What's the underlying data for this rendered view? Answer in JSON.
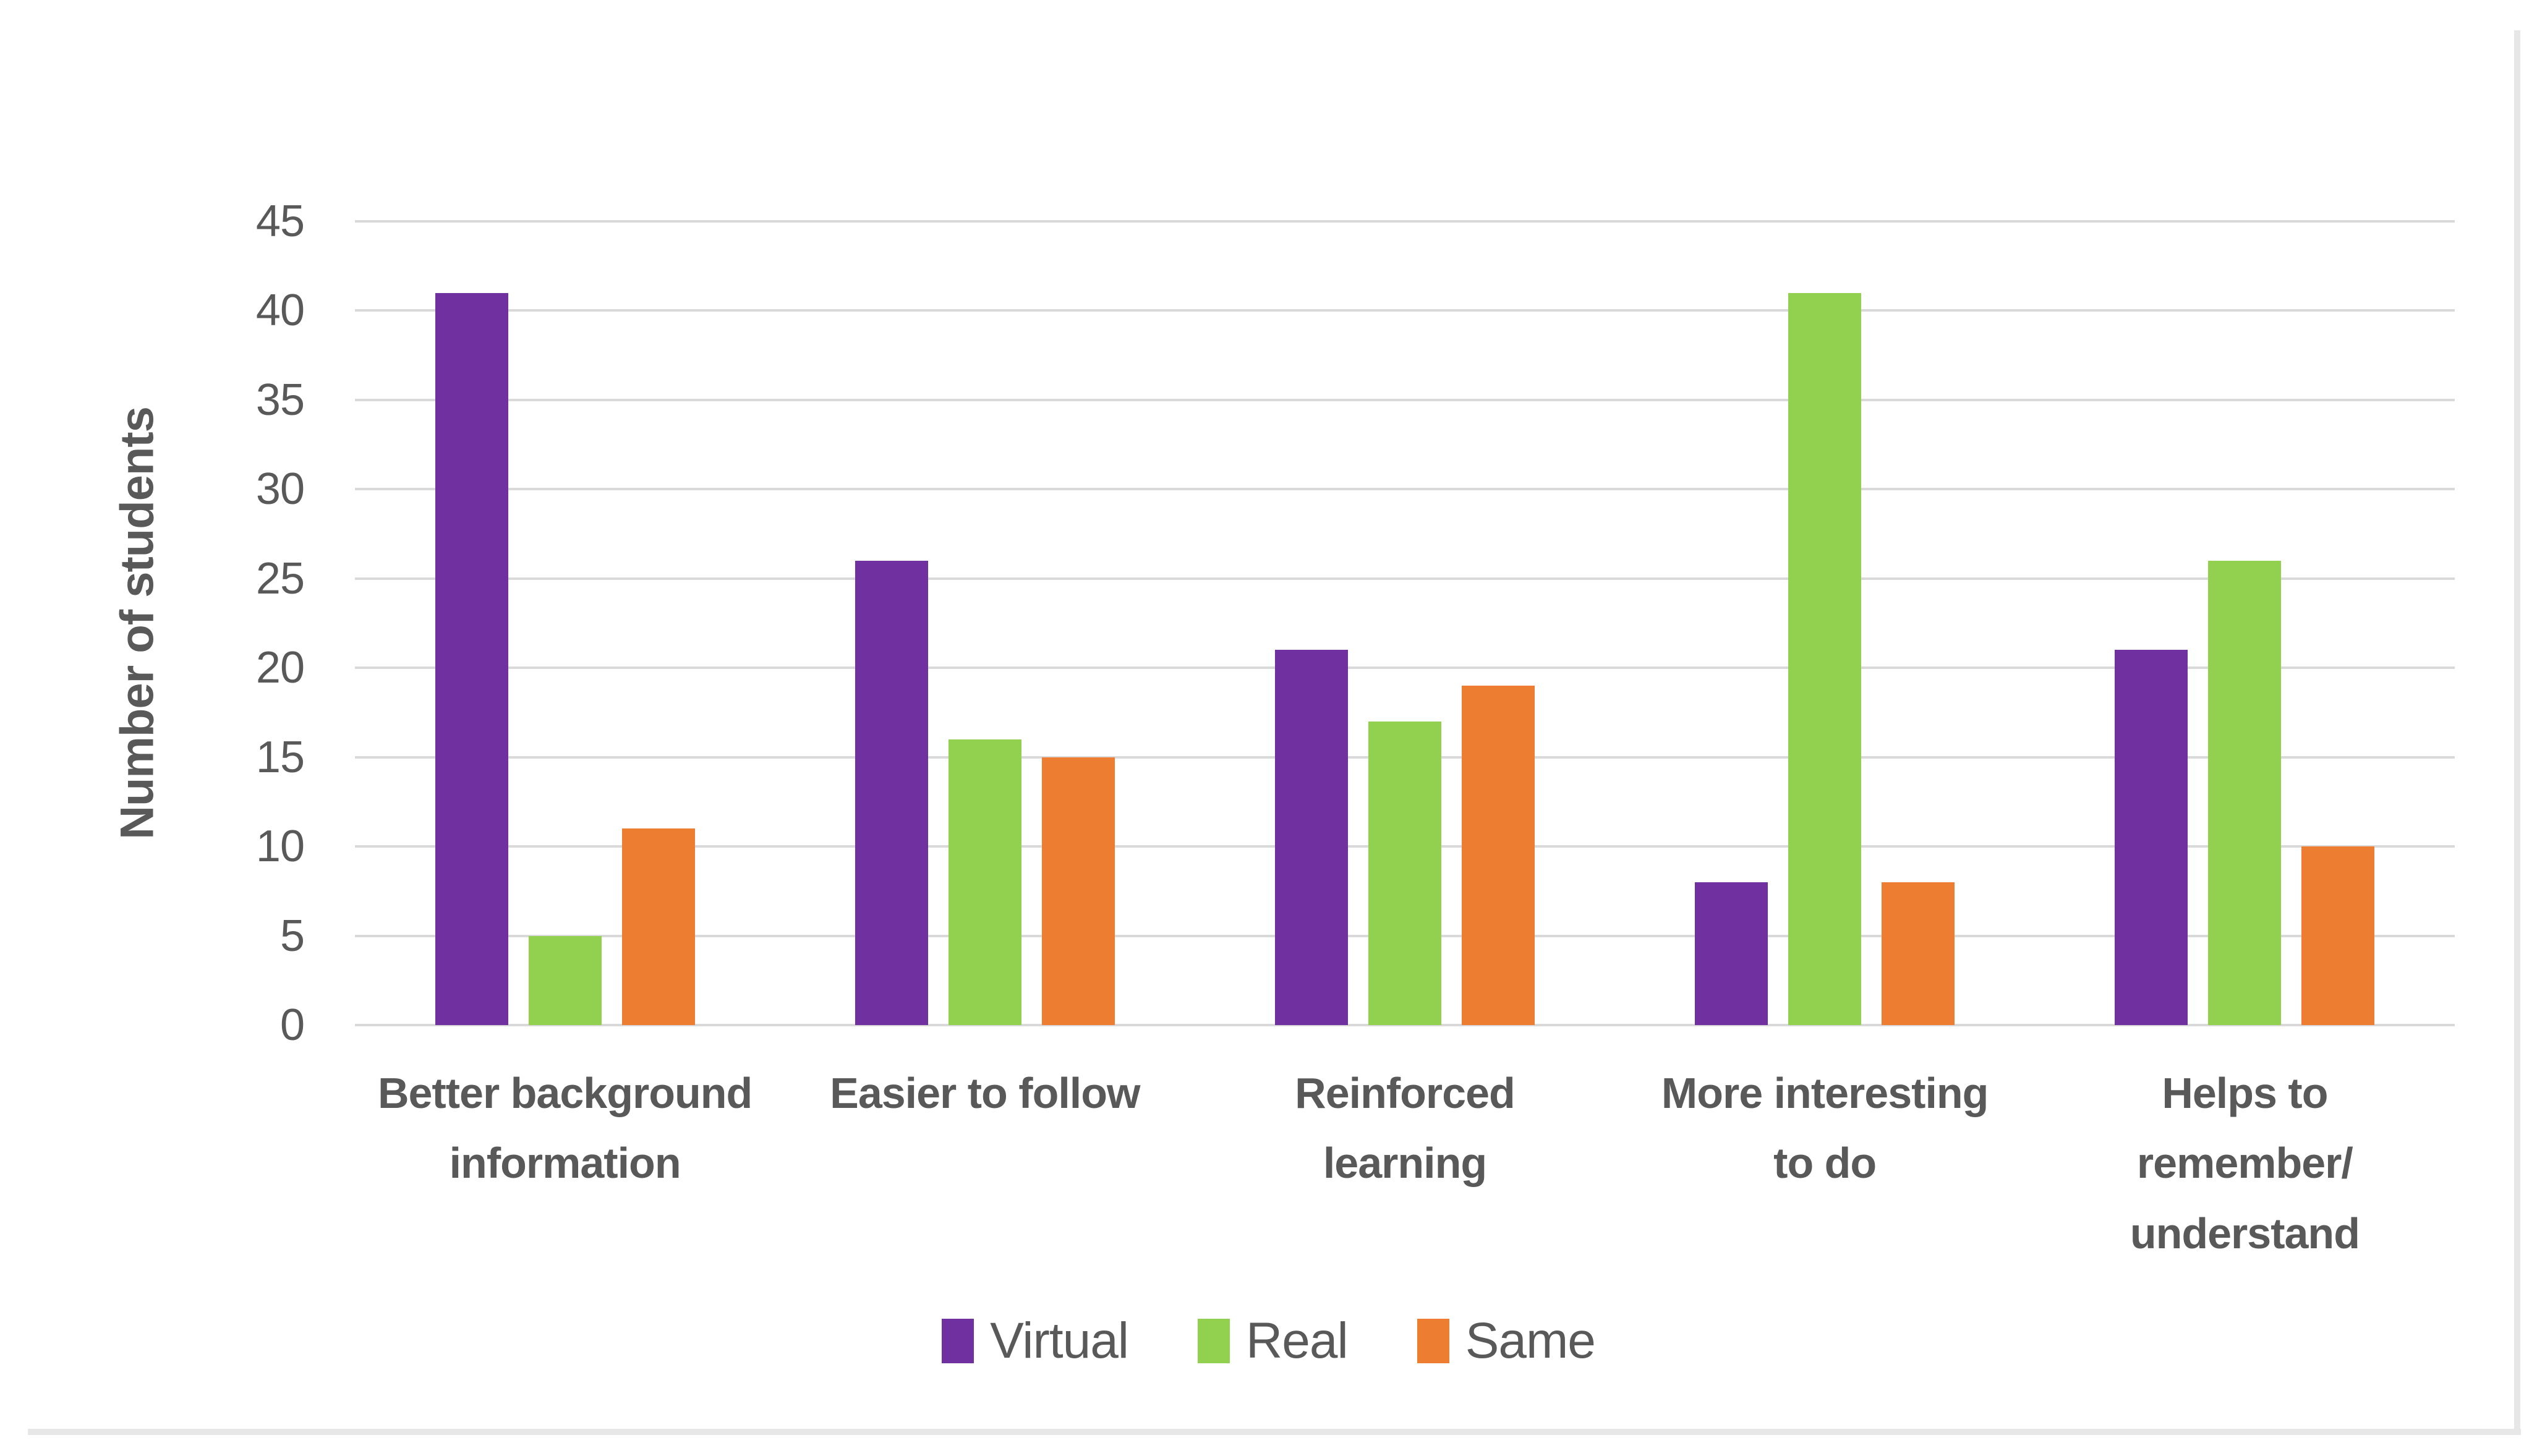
{
  "chart_data": {
    "type": "bar",
    "title": "",
    "ylabel": "Number of students",
    "xlabel": "",
    "ylim": [
      0,
      45
    ],
    "yticks": [
      0,
      5,
      10,
      15,
      20,
      25,
      30,
      35,
      40,
      45
    ],
    "grid": true,
    "legend_position": "bottom",
    "categories": [
      "Better background\ninformation",
      "Easier to follow",
      "Reinforced\nlearning",
      "More interesting\nto do",
      "Helps to\nremember/\nunderstand"
    ],
    "series": [
      {
        "name": "Virtual",
        "color": "#7030A0",
        "values": [
          41,
          26,
          21,
          8,
          21
        ]
      },
      {
        "name": "Real",
        "color": "#92D050",
        "values": [
          5,
          16,
          17,
          41,
          26
        ]
      },
      {
        "name": "Same",
        "color": "#ED7D31",
        "values": [
          11,
          15,
          19,
          8,
          10
        ]
      }
    ]
  },
  "style_colors": {
    "text": "#595959",
    "gridline": "#D9D9D9",
    "page_border": "#E7E7E7",
    "background": "#FFFFFF"
  }
}
